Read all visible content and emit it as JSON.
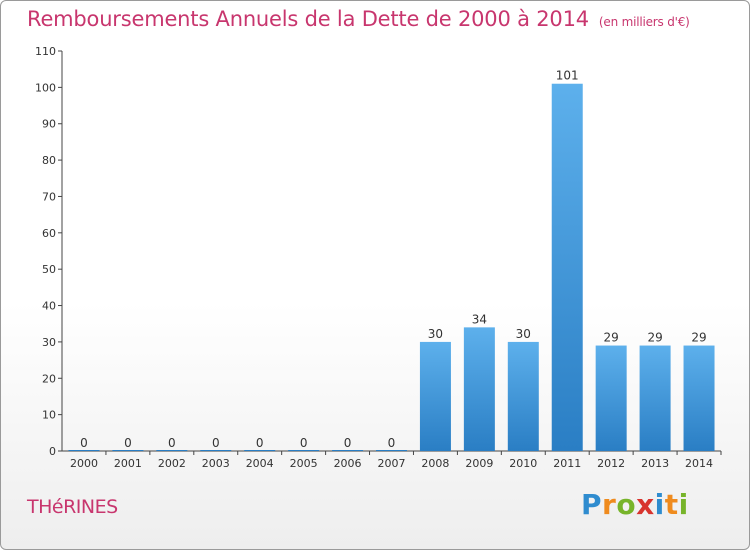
{
  "title": "Remboursements Annuels de la Dette de 2000 à 2014",
  "unit": "(en milliers d'€)",
  "commune": "THéRINES",
  "logo": "Proxiti",
  "colors": {
    "bar_top": "#5db0ec",
    "bar_bottom": "#2a7ec4",
    "title": "#c8366e"
  },
  "chart_data": {
    "type": "bar",
    "categories": [
      "2000",
      "2001",
      "2002",
      "2003",
      "2004",
      "2005",
      "2006",
      "2007",
      "2008",
      "2009",
      "2010",
      "2011",
      "2012",
      "2013",
      "2014"
    ],
    "values": [
      0,
      0,
      0,
      0,
      0,
      0,
      0,
      0,
      30,
      34,
      30,
      101,
      29,
      29,
      29
    ],
    "ylim": [
      0,
      110
    ],
    "yticks": [
      0,
      10,
      20,
      30,
      40,
      50,
      60,
      70,
      80,
      90,
      100,
      110
    ],
    "grid": false
  }
}
